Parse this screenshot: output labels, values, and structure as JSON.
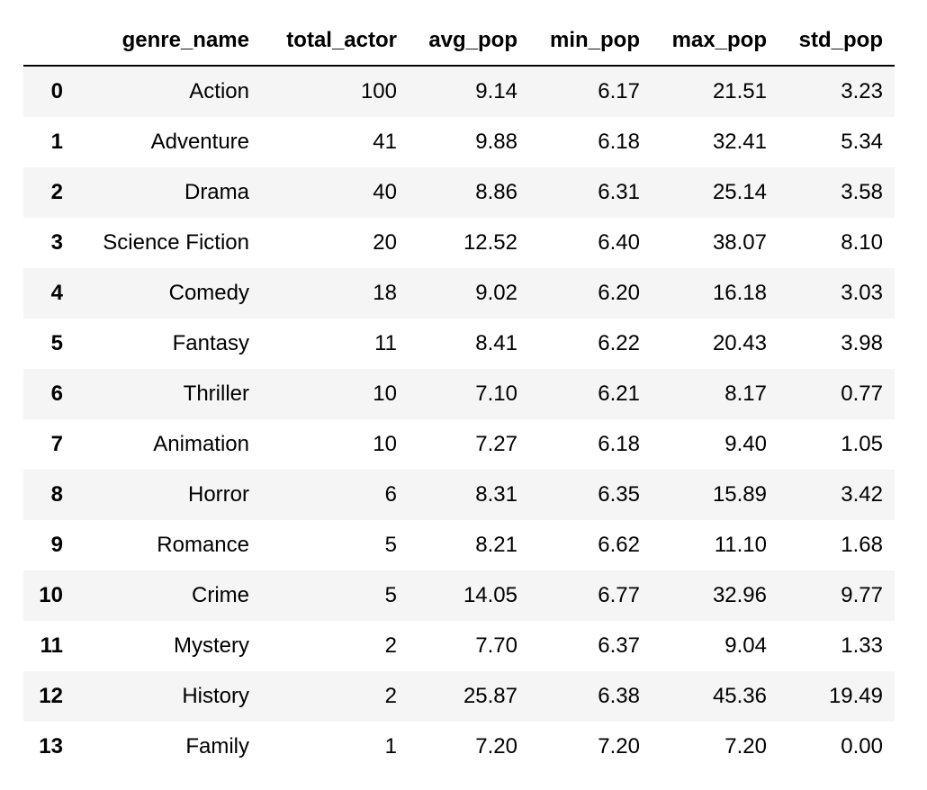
{
  "table": {
    "columns": [
      "",
      "genre_name",
      "total_actor",
      "avg_pop",
      "min_pop",
      "max_pop",
      "std_pop"
    ],
    "rows": [
      {
        "index": "0",
        "genre_name": "Action",
        "total_actor": "100",
        "avg_pop": "9.14",
        "min_pop": "6.17",
        "max_pop": "21.51",
        "std_pop": "3.23"
      },
      {
        "index": "1",
        "genre_name": "Adventure",
        "total_actor": "41",
        "avg_pop": "9.88",
        "min_pop": "6.18",
        "max_pop": "32.41",
        "std_pop": "5.34"
      },
      {
        "index": "2",
        "genre_name": "Drama",
        "total_actor": "40",
        "avg_pop": "8.86",
        "min_pop": "6.31",
        "max_pop": "25.14",
        "std_pop": "3.58"
      },
      {
        "index": "3",
        "genre_name": "Science Fiction",
        "total_actor": "20",
        "avg_pop": "12.52",
        "min_pop": "6.40",
        "max_pop": "38.07",
        "std_pop": "8.10"
      },
      {
        "index": "4",
        "genre_name": "Comedy",
        "total_actor": "18",
        "avg_pop": "9.02",
        "min_pop": "6.20",
        "max_pop": "16.18",
        "std_pop": "3.03"
      },
      {
        "index": "5",
        "genre_name": "Fantasy",
        "total_actor": "11",
        "avg_pop": "8.41",
        "min_pop": "6.22",
        "max_pop": "20.43",
        "std_pop": "3.98"
      },
      {
        "index": "6",
        "genre_name": "Thriller",
        "total_actor": "10",
        "avg_pop": "7.10",
        "min_pop": "6.21",
        "max_pop": "8.17",
        "std_pop": "0.77"
      },
      {
        "index": "7",
        "genre_name": "Animation",
        "total_actor": "10",
        "avg_pop": "7.27",
        "min_pop": "6.18",
        "max_pop": "9.40",
        "std_pop": "1.05"
      },
      {
        "index": "8",
        "genre_name": "Horror",
        "total_actor": "6",
        "avg_pop": "8.31",
        "min_pop": "6.35",
        "max_pop": "15.89",
        "std_pop": "3.42"
      },
      {
        "index": "9",
        "genre_name": "Romance",
        "total_actor": "5",
        "avg_pop": "8.21",
        "min_pop": "6.62",
        "max_pop": "11.10",
        "std_pop": "1.68"
      },
      {
        "index": "10",
        "genre_name": "Crime",
        "total_actor": "5",
        "avg_pop": "14.05",
        "min_pop": "6.77",
        "max_pop": "32.96",
        "std_pop": "9.77"
      },
      {
        "index": "11",
        "genre_name": "Mystery",
        "total_actor": "2",
        "avg_pop": "7.70",
        "min_pop": "6.37",
        "max_pop": "9.04",
        "std_pop": "1.33"
      },
      {
        "index": "12",
        "genre_name": "History",
        "total_actor": "2",
        "avg_pop": "25.87",
        "min_pop": "6.38",
        "max_pop": "45.36",
        "std_pop": "19.49"
      },
      {
        "index": "13",
        "genre_name": "Family",
        "total_actor": "1",
        "avg_pop": "7.20",
        "min_pop": "7.20",
        "max_pop": "7.20",
        "std_pop": "0.00"
      }
    ]
  }
}
